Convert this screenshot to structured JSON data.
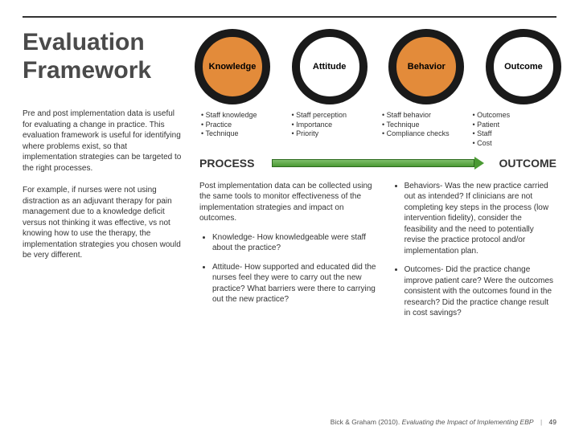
{
  "title": "Evaluation Framework",
  "left_paras": [
    "Pre and post implementation data is useful for evaluating a change in practice. This evaluation framework is useful for identifying where problems exist, so that implementation strategies can be targeted to the right processes.",
    "For example, if nurses were not using distraction as an adjuvant therapy for pain management due to a knowledge deficit versus not thinking it was effective, vs not knowing how to use the therapy, the implementation strategies you chosen would be very different."
  ],
  "circles": [
    {
      "label": "Knowledge",
      "style": "orange"
    },
    {
      "label": "Attitude",
      "style": "white"
    },
    {
      "label": "Behavior",
      "style": "orange"
    },
    {
      "label": "Outcome",
      "style": "white"
    }
  ],
  "bullet_cols": [
    [
      "• Staff knowledge",
      "• Practice",
      "• Technique"
    ],
    [
      "• Staff perception",
      "• Importance",
      "• Priority"
    ],
    [
      "• Staff behavior",
      "• Technique",
      "• Compliance checks"
    ],
    [
      "• Outcomes",
      "• Patient",
      "• Staff",
      "• Cost"
    ]
  ],
  "process_label": "PROCESS",
  "outcome_label": "OUTCOME",
  "lower_left_para": "Post implementation data can be collected using the same tools to monitor effectiveness of the implementation strategies and impact on outcomes.",
  "lower_left_items": [
    "Knowledge- How knowledgeable were staff about the practice?",
    "Attitude- How supported and educated did the nurses feel they were to carry out the new practice? What barriers were there to carrying out the new practice?"
  ],
  "lower_right_items": [
    "Behaviors- Was the new practice carried out as intended? If clinicians are not completing key steps in the process (low intervention fidelity), consider the feasibility and the need to potentially revise the practice protocol and/or implementation plan.",
    "Outcomes- Did the practice change improve patient care? Were the outcomes consistent with the outcomes found in the research? Did the practice change result in cost savings?"
  ],
  "citation_author": "Bick & Graham (2010).",
  "citation_title": "Evaluating the Impact of Implementing EBP",
  "page_number": "49",
  "colors": {
    "orange": "#e38b3a",
    "dark_ring": "#1a1a1a",
    "arrow_start": "#7fbf6b",
    "arrow_end": "#4a9a33"
  }
}
